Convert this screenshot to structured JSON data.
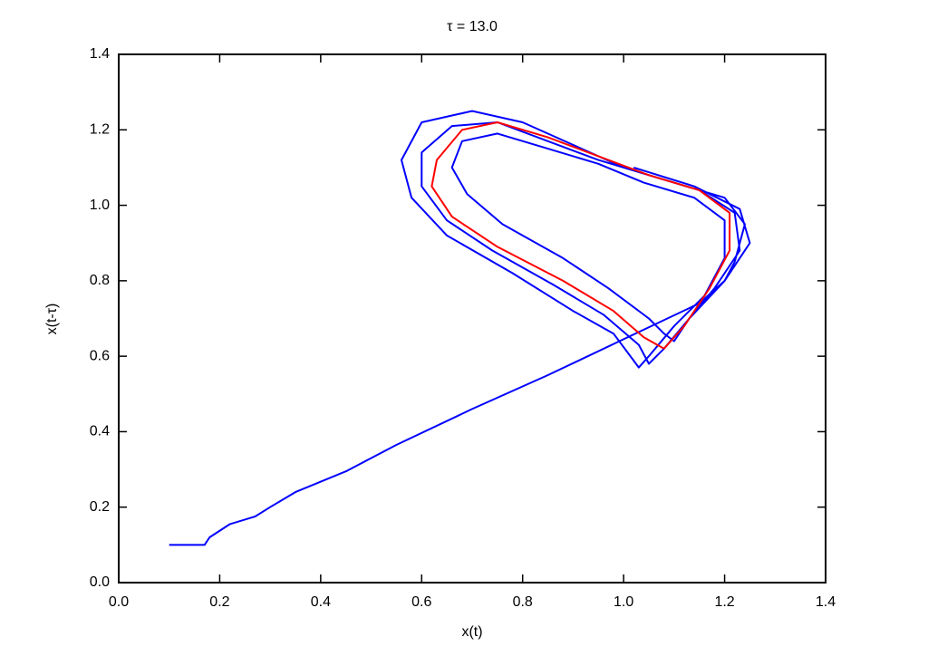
{
  "chart_data": {
    "type": "line",
    "title": "τ = 13.0",
    "x_label": "x(t)",
    "y_label": "x(t-τ)",
    "xlim": [
      0,
      1.4
    ],
    "ylim": [
      0,
      1.4
    ],
    "xticks": [
      {
        "value": 0,
        "label": "0.0"
      },
      0.2,
      0.4,
      0.6,
      0.8,
      {
        "value": 1,
        "label": "1.0"
      },
      1.2,
      1.4
    ],
    "yticks": [
      {
        "value": 0,
        "label": "0.0"
      },
      0.2,
      0.4,
      0.6,
      0.8,
      {
        "value": 1,
        "label": "1.0"
      },
      1.2,
      1.4
    ],
    "series": [
      {
        "color": "#0000ff",
        "x": [
          0.1,
          0.17,
          0.18,
          0.22,
          0.27,
          0.3,
          0.35,
          0.45,
          0.55,
          0.7,
          0.85,
          1.0,
          1.15,
          1.2,
          1.22,
          1.24,
          1.2,
          1.1,
          1.0,
          0.9,
          0.8,
          0.7,
          0.6,
          0.56,
          0.58,
          0.65,
          0.78,
          0.9,
          0.98,
          1.03,
          1.05,
          1.1,
          1.16,
          1.2,
          1.2,
          1.14,
          1.04,
          0.95,
          0.85,
          0.75,
          0.68,
          0.66,
          0.69,
          0.76,
          0.88,
          0.97,
          1.05,
          1.08,
          1.1,
          1.13,
          1.18,
          1.23,
          1.22,
          1.15,
          1.05,
          0.95,
          0.85,
          0.75,
          0.66,
          0.6,
          0.6,
          0.65,
          0.74,
          0.86,
          0.96,
          1.03,
          1.05,
          1.08,
          1.13,
          1.2,
          1.25,
          1.23,
          1.14,
          1.02
        ],
        "values": [
          0.1,
          0.1,
          0.12,
          0.155,
          0.175,
          0.2,
          0.24,
          0.295,
          0.365,
          0.46,
          0.55,
          0.645,
          0.74,
          0.8,
          0.85,
          0.95,
          1.02,
          1.06,
          1.1,
          1.16,
          1.22,
          1.25,
          1.22,
          1.12,
          1.02,
          0.92,
          0.82,
          0.72,
          0.66,
          0.57,
          0.6,
          0.68,
          0.76,
          0.86,
          0.96,
          1.02,
          1.06,
          1.11,
          1.15,
          1.19,
          1.17,
          1.1,
          1.03,
          0.95,
          0.86,
          0.78,
          0.7,
          0.66,
          0.64,
          0.7,
          0.78,
          0.88,
          0.98,
          1.04,
          1.08,
          1.12,
          1.17,
          1.22,
          1.21,
          1.14,
          1.05,
          0.96,
          0.88,
          0.79,
          0.71,
          0.63,
          0.58,
          0.62,
          0.7,
          0.8,
          0.9,
          0.99,
          1.05,
          1.1
        ]
      },
      {
        "color": "#ff0000",
        "x": [
          1.08,
          1.12,
          1.17,
          1.21,
          1.21,
          1.15,
          1.05,
          0.95,
          0.85,
          0.75,
          0.68,
          0.63,
          0.62,
          0.66,
          0.75,
          0.88,
          0.98,
          1.04,
          1.08
        ],
        "values": [
          0.62,
          0.68,
          0.78,
          0.88,
          0.98,
          1.04,
          1.08,
          1.13,
          1.18,
          1.22,
          1.2,
          1.12,
          1.05,
          0.97,
          0.89,
          0.8,
          0.72,
          0.65,
          0.62
        ]
      }
    ]
  }
}
